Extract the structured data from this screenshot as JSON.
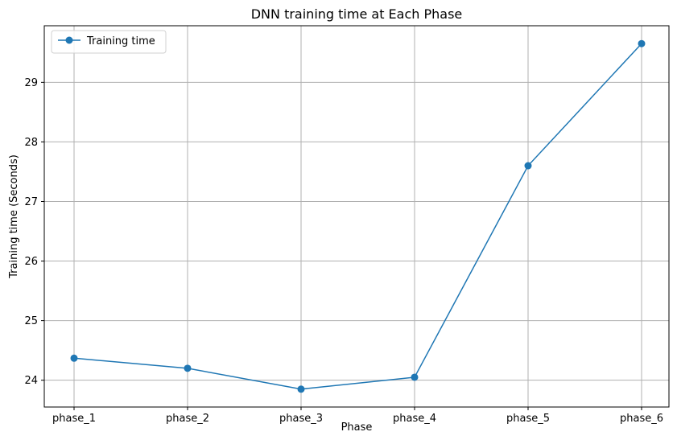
{
  "chart_data": {
    "type": "line",
    "title": "DNN training time at Each Phase",
    "xlabel": "Phase",
    "ylabel": "Training time (Seconds)",
    "categories": [
      "phase_1",
      "phase_2",
      "phase_3",
      "phase_4",
      "phase_5",
      "phase_6"
    ],
    "series": [
      {
        "name": "Training time",
        "values": [
          24.37,
          24.2,
          23.85,
          24.05,
          27.6,
          29.65
        ],
        "color": "#1f77b4",
        "marker": "circle"
      }
    ],
    "ylim": [
      23.55,
      29.95
    ],
    "yticks": [
      24,
      25,
      26,
      27,
      28,
      29
    ],
    "grid": true,
    "legend_position": "top-left"
  }
}
